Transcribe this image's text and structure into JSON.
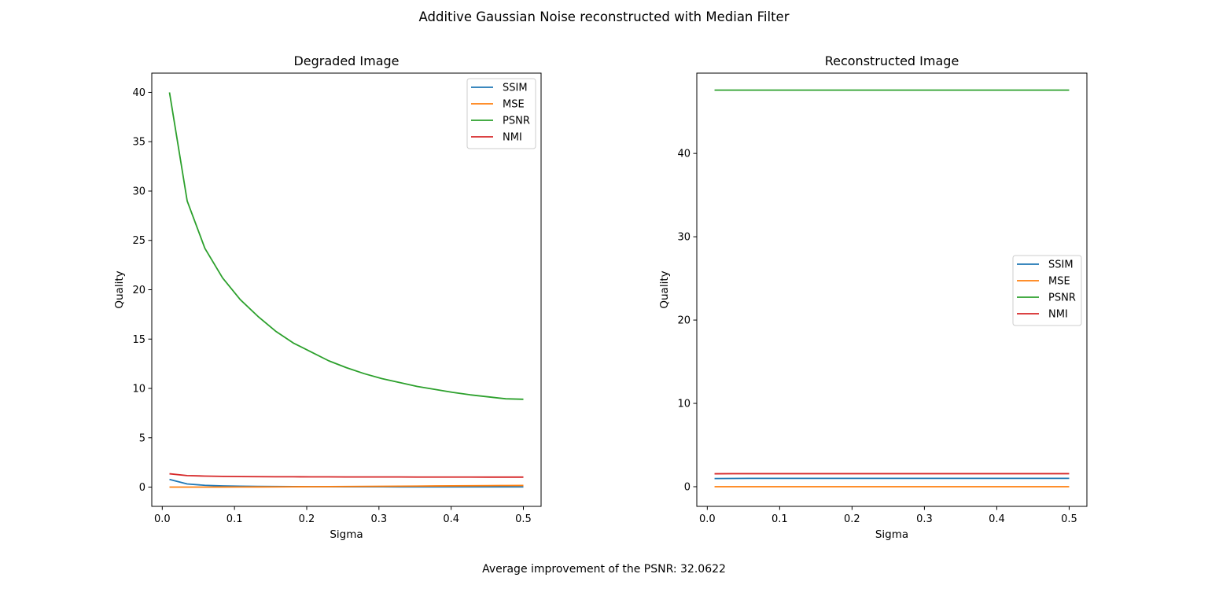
{
  "figure": {
    "suptitle": "Additive Gaussian Noise reconstructed with Median Filter",
    "footer": "Average improvement of the PSNR: 32.0622"
  },
  "colors": {
    "SSIM": "#1f77b4",
    "MSE": "#ff7f0e",
    "PSNR": "#2ca02c",
    "NMI": "#d62728"
  },
  "chart_data": [
    {
      "type": "line",
      "title": "Degraded Image",
      "xlabel": "Sigma",
      "ylabel": "Quality",
      "xlim": [
        -0.0145,
        0.5245
      ],
      "ylim": [
        -1.95,
        41.95
      ],
      "xticks": [
        0.0,
        0.1,
        0.2,
        0.3,
        0.4,
        0.5
      ],
      "xtick_labels": [
        "0.0",
        "0.1",
        "0.2",
        "0.3",
        "0.4",
        "0.5"
      ],
      "yticks": [
        0,
        5,
        10,
        15,
        20,
        25,
        30,
        35,
        40
      ],
      "ytick_labels": [
        "0",
        "5",
        "10",
        "15",
        "20",
        "25",
        "30",
        "35",
        "40"
      ],
      "legend": "upper right",
      "grid": false,
      "x": [
        0.01,
        0.0345,
        0.059,
        0.0835,
        0.108,
        0.1325,
        0.157,
        0.1815,
        0.206,
        0.2305,
        0.255,
        0.2795,
        0.304,
        0.3285,
        0.353,
        0.3775,
        0.402,
        0.4265,
        0.451,
        0.4755,
        0.5
      ],
      "series": [
        {
          "name": "SSIM",
          "values": [
            0.78,
            0.32,
            0.18,
            0.12,
            0.09,
            0.07,
            0.06,
            0.05,
            0.04,
            0.04,
            0.03,
            0.03,
            0.03,
            0.02,
            0.02,
            0.02,
            0.02,
            0.02,
            0.02,
            0.02,
            0.02
          ]
        },
        {
          "name": "MSE",
          "values": [
            0.0001,
            0.0012,
            0.0035,
            0.007,
            0.0115,
            0.017,
            0.024,
            0.032,
            0.04,
            0.05,
            0.06,
            0.071,
            0.082,
            0.093,
            0.104,
            0.115,
            0.126,
            0.137,
            0.148,
            0.158,
            0.168
          ]
        },
        {
          "name": "PSNR",
          "values": [
            40.0,
            29.0,
            24.2,
            21.2,
            19.0,
            17.3,
            15.8,
            14.6,
            13.7,
            12.8,
            12.1,
            11.5,
            11.0,
            10.6,
            10.2,
            9.9,
            9.6,
            9.35,
            9.15,
            8.95,
            8.9
          ]
        },
        {
          "name": "NMI",
          "values": [
            1.35,
            1.17,
            1.12,
            1.09,
            1.07,
            1.06,
            1.05,
            1.045,
            1.04,
            1.035,
            1.03,
            1.03,
            1.025,
            1.025,
            1.02,
            1.02,
            1.02,
            1.02,
            1.015,
            1.015,
            1.015
          ]
        }
      ]
    },
    {
      "type": "line",
      "title": "Reconstructed Image",
      "xlabel": "Sigma",
      "ylabel": "Quality",
      "xlim": [
        -0.0145,
        0.5245
      ],
      "ylim": [
        -2.36,
        49.64
      ],
      "xticks": [
        0.0,
        0.1,
        0.2,
        0.3,
        0.4,
        0.5
      ],
      "xtick_labels": [
        "0.0",
        "0.1",
        "0.2",
        "0.3",
        "0.4",
        "0.5"
      ],
      "yticks": [
        0,
        10,
        20,
        30,
        40
      ],
      "ytick_labels": [
        "0",
        "10",
        "20",
        "30",
        "40"
      ],
      "legend": "center right",
      "grid": false,
      "x": [
        0.01,
        0.0345,
        0.059,
        0.0835,
        0.108,
        0.1325,
        0.157,
        0.1815,
        0.206,
        0.2305,
        0.255,
        0.2795,
        0.304,
        0.3285,
        0.353,
        0.3775,
        0.402,
        0.4265,
        0.451,
        0.4755,
        0.5
      ],
      "series": [
        {
          "name": "SSIM",
          "values": [
            0.98,
            0.99,
            1.0,
            1.0,
            1.0,
            1.0,
            1.0,
            1.0,
            1.0,
            1.0,
            1.0,
            1.0,
            1.0,
            1.0,
            1.0,
            1.0,
            1.0,
            1.0,
            1.0,
            1.0,
            1.0
          ]
        },
        {
          "name": "MSE",
          "values": [
            0.0,
            0.0,
            0.0,
            0.0,
            0.0,
            0.0,
            0.0,
            0.0,
            0.0,
            0.0,
            0.0,
            0.0,
            0.0,
            0.0,
            0.0,
            0.0,
            0.0,
            0.0,
            0.0,
            0.0,
            0.0
          ]
        },
        {
          "name": "PSNR",
          "values": [
            47.6,
            47.6,
            47.6,
            47.6,
            47.6,
            47.6,
            47.6,
            47.6,
            47.6,
            47.6,
            47.6,
            47.6,
            47.6,
            47.6,
            47.6,
            47.6,
            47.6,
            47.6,
            47.6,
            47.6,
            47.6
          ]
        },
        {
          "name": "NMI",
          "values": [
            1.55,
            1.56,
            1.56,
            1.56,
            1.56,
            1.56,
            1.56,
            1.56,
            1.56,
            1.56,
            1.56,
            1.56,
            1.56,
            1.56,
            1.56,
            1.56,
            1.56,
            1.56,
            1.56,
            1.56,
            1.56
          ]
        }
      ]
    }
  ]
}
